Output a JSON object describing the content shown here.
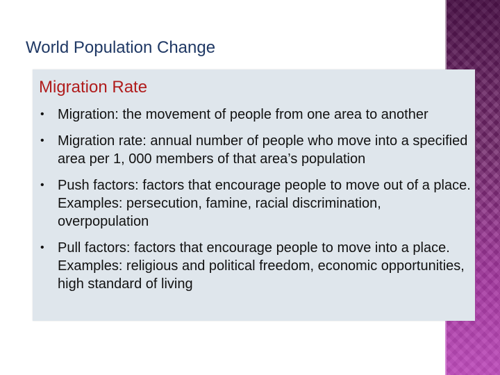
{
  "slide": {
    "title": "World Population Change",
    "section_heading": "Migration Rate",
    "bullet_marker": "•",
    "bullets": [
      {
        "term": "Migration:",
        "text": " the movement of people from one area to another"
      },
      {
        "text": "Migration rate: annual number of people who move into a specified area per 1, 000 members of that area’s population"
      },
      {
        "text": "Push factors: factors that encourage people to move out of a place. Examples: persecution, famine, racial discrimination, overpopulation"
      },
      {
        "text": "Pull factors: factors that encourage people to move into a place. Examples: religious and political freedom, economic opportunities, high standard of living"
      }
    ]
  },
  "colors": {
    "title": "#1f3864",
    "section_heading": "#b01c1c",
    "content_background": "#dfe6ec",
    "side_band": "#7a2a72"
  }
}
